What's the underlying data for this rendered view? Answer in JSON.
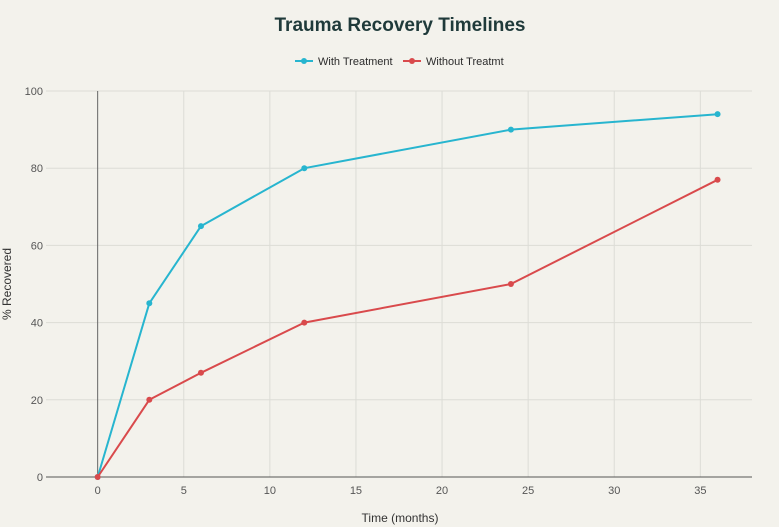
{
  "chart_data": {
    "type": "line",
    "title": "Trauma Recovery Timelines",
    "xlabel": "Time (months)",
    "ylabel": "% Recovered",
    "xlim": [
      -3,
      38
    ],
    "ylim": [
      0,
      100
    ],
    "xticks": [
      0,
      5,
      10,
      15,
      20,
      25,
      30,
      35
    ],
    "yticks": [
      0,
      20,
      40,
      60,
      80,
      100
    ],
    "grid": true,
    "legend_position": "top-center",
    "series": [
      {
        "name": "With Treatment",
        "color": "#27b5cf",
        "x": [
          0,
          3,
          6,
          12,
          24,
          36
        ],
        "y": [
          0,
          45,
          65,
          80,
          90,
          94
        ]
      },
      {
        "name": "Without Treatmt",
        "color": "#d94a4c",
        "x": [
          0,
          3,
          6,
          12,
          24,
          36
        ],
        "y": [
          0,
          20,
          27,
          40,
          50,
          77
        ]
      }
    ]
  }
}
